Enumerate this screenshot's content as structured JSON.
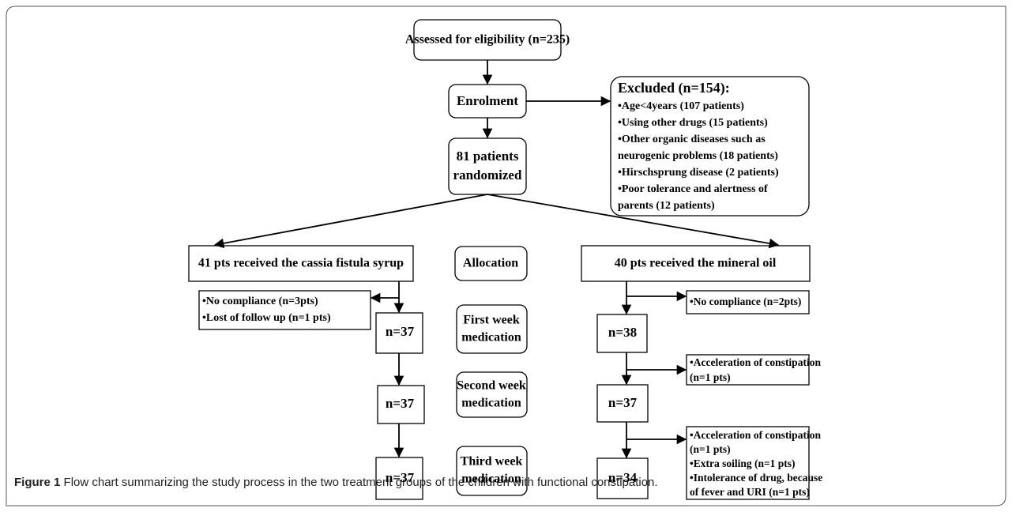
{
  "nodes": {
    "assessed": "Assessed for eligibility (n=235)",
    "enrolment": "Enrolment",
    "randomized": [
      "81 patients",
      "randomized"
    ],
    "excluded": {
      "title": "Excluded (n=154):",
      "items": [
        "•Age<4years (107 patients)",
        "•Using other drugs (15 patients)",
        "•Other organic diseases such as",
        "neurogenic problems (18 patients)",
        "•Hirschsprung disease (2 patients)",
        "•Poor tolerance and alertness of",
        "parents (12 patients)"
      ]
    },
    "left_group": "41 pts received the cassia fistula syrup",
    "allocation": "Allocation",
    "right_group": "40 pts received the mineral oil",
    "left_excluded": [
      "•No compliance (n=3pts)",
      "•Lost of follow up (n=1 pts)"
    ],
    "left_counts": [
      "n=37",
      "n=37",
      "n=37"
    ],
    "phases": [
      [
        "First week",
        "medication"
      ],
      [
        "Second week",
        "medication"
      ],
      [
        "Third week",
        "medication"
      ]
    ],
    "right_counts": [
      "n=38",
      "n=37",
      "n=34"
    ],
    "right_excluded": [
      [
        "•No compliance (n=2pts)"
      ],
      [
        "•Acceleration of constipation",
        "(n=1 pts)"
      ],
      [
        "•Acceleration of constipation",
        "(n=1 pts)",
        "•Extra soiling (n=1 pts)",
        "•Intolerance of drug, because",
        "of fever and URI (n=1 pts)"
      ]
    ]
  },
  "caption": {
    "label": "Figure 1",
    "text": " Flow chart summarizing the study process in the two treatment groups of the children with functional constipation."
  }
}
